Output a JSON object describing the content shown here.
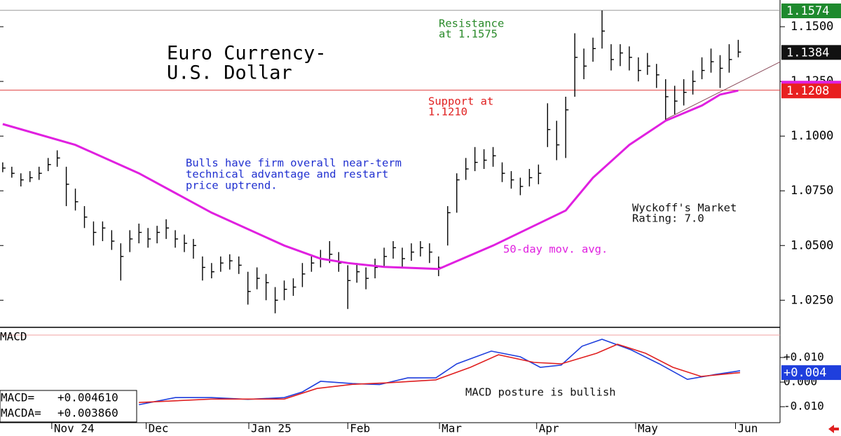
{
  "chart_data": [
    {
      "type": "ohlc",
      "title": [
        "Euro Currency-",
        "U.S. Dollar"
      ],
      "xlim": [
        -0.3,
        85.6
      ],
      "xticks": [
        {
          "value": 5.4,
          "label": "Nov 24"
        },
        {
          "value": 15.8,
          "label": "Dec"
        },
        {
          "value": 27.1,
          "label": "Jan 25"
        },
        {
          "value": 38,
          "label": "Feb"
        },
        {
          "value": 48.1,
          "label": "Mar"
        },
        {
          "value": 58.8,
          "label": "Apr"
        },
        {
          "value": 69.7,
          "label": "May"
        },
        {
          "value": 80.7,
          "label": "Jun"
        }
      ],
      "ylim": [
        1.0126,
        1.1574
      ],
      "yticks": [
        {
          "value": 1.15,
          "label": "1.1500"
        },
        {
          "value": 1.125,
          "label": "1.1250"
        },
        {
          "value": 1.1,
          "label": "1.1000"
        },
        {
          "value": 1.075,
          "label": "1.0750"
        },
        {
          "value": 1.05,
          "label": "1.0500"
        },
        {
          "value": 1.025,
          "label": "1.0250"
        }
      ],
      "color": "#000000",
      "bars": {
        "high": [
          1.088,
          1.086,
          1.083,
          1.084,
          1.086,
          1.09,
          1.0935,
          1.086,
          1.076,
          1.068,
          1.061,
          1.061,
          1.057,
          1.051,
          1.057,
          1.06,
          1.058,
          1.059,
          1.062,
          1.057,
          1.055,
          1.053,
          1.045,
          1.042,
          1.045,
          1.046,
          1.045,
          1.038,
          1.04,
          1.037,
          1.031,
          1.034,
          1.035,
          1.042,
          1.045,
          1.048,
          1.052,
          1.047,
          1.041,
          1.042,
          1.04,
          1.044,
          1.049,
          1.052,
          1.049,
          1.051,
          1.052,
          1.051,
          1.045,
          1.068,
          1.083,
          1.09,
          1.095,
          1.094,
          1.095,
          1.088,
          1.084,
          1.081,
          1.085,
          1.087,
          1.115,
          1.107,
          1.118,
          1.147,
          1.14,
          1.145,
          1.1574,
          1.142,
          1.142,
          1.141,
          1.136,
          1.138,
          1.133,
          1.126,
          1.123,
          1.126,
          1.13,
          1.136,
          1.14,
          1.137,
          1.142,
          1.144
        ],
        "low": [
          1.0835,
          1.081,
          1.077,
          1.079,
          1.08,
          1.084,
          1.086,
          1.068,
          1.066,
          1.058,
          1.05,
          1.052,
          1.048,
          1.034,
          1.047,
          1.051,
          1.049,
          1.051,
          1.053,
          1.049,
          1.047,
          1.044,
          1.034,
          1.035,
          1.038,
          1.039,
          1.037,
          1.023,
          1.03,
          1.025,
          1.019,
          1.025,
          1.027,
          1.031,
          1.038,
          1.04,
          1.042,
          1.038,
          1.021,
          1.033,
          1.03,
          1.035,
          1.04,
          1.044,
          1.04,
          1.043,
          1.045,
          1.042,
          1.036,
          1.05,
          1.065,
          1.08,
          1.084,
          1.085,
          1.086,
          1.079,
          1.076,
          1.073,
          1.077,
          1.078,
          1.095,
          1.089,
          1.09,
          1.118,
          1.126,
          1.134,
          1.14,
          1.13,
          1.132,
          1.13,
          1.125,
          1.128,
          1.122,
          1.107,
          1.11,
          1.114,
          1.119,
          1.126,
          1.129,
          1.122,
          1.129,
          1.136
        ],
        "close": [
          1.0854,
          1.083,
          1.08,
          1.081,
          1.083,
          1.087,
          1.09,
          1.078,
          1.07,
          1.063,
          1.056,
          1.058,
          1.052,
          1.045,
          1.053,
          1.056,
          1.053,
          1.056,
          1.058,
          1.053,
          1.051,
          1.05,
          1.04,
          1.038,
          1.042,
          1.043,
          1.041,
          1.029,
          1.035,
          1.033,
          1.025,
          1.03,
          1.031,
          1.037,
          1.042,
          1.044,
          1.046,
          1.042,
          1.034,
          1.038,
          1.035,
          1.04,
          1.045,
          1.049,
          1.044,
          1.047,
          1.049,
          1.047,
          1.04,
          1.065,
          1.08,
          1.085,
          1.088,
          1.089,
          1.091,
          1.083,
          1.08,
          1.077,
          1.081,
          1.083,
          1.103,
          1.096,
          1.112,
          1.136,
          1.132,
          1.14,
          1.148,
          1.135,
          1.138,
          1.136,
          1.13,
          1.132,
          1.128,
          1.118,
          1.116,
          1.12,
          1.125,
          1.13,
          1.134,
          1.131,
          1.135,
          1.1384
        ]
      },
      "series": [
        {
          "color": "#e020e0",
          "x": [
            0,
            8,
            15,
            23,
            31,
            35,
            38,
            42,
            48,
            54,
            62,
            65,
            69,
            73,
            77,
            79,
            81
          ],
          "values": [
            1.1055,
            1.096,
            1.083,
            1.065,
            1.05,
            1.044,
            1.042,
            1.0402,
            1.0393,
            1.05,
            1.066,
            1.081,
            1.096,
            1.107,
            1.114,
            1.119,
            1.1208
          ]
        }
      ],
      "trendline": {
        "color": "#8a4a5a",
        "x": [
          73,
          85.6
        ],
        "values": [
          1.1077,
          1.1339
        ]
      },
      "levels": [
        {
          "value": 1.1575,
          "color": "#999999"
        },
        {
          "value": 1.121,
          "color": "#e04040"
        }
      ],
      "price_markers": [
        {
          "value": 1.1574,
          "color": "#1e8a2e"
        },
        {
          "value": 1.1384,
          "color": "#111111"
        },
        {
          "value": 1.1208,
          "color": "#e82020"
        }
      ],
      "annotations": [
        {
          "lines": [
            "Resistance",
            "at 1.1575"
          ],
          "color": "#2a8a2a"
        },
        {
          "lines": [
            "Support at",
            "1.1210"
          ],
          "color": "#e02020"
        },
        {
          "lines": [
            "Bulls have firm overall near-term",
            "technical advantage and restart",
            "price uptrend."
          ],
          "color": "#2030d0"
        },
        {
          "lines": [
            "Wyckoff's Market",
            "Rating: 7.0"
          ],
          "color": "#111111"
        },
        {
          "lines": [
            "50-day mov. avg."
          ],
          "color": "#e020e0"
        }
      ]
    },
    {
      "type": "line",
      "title": "MACD",
      "ylim": [
        -0.0165,
        0.0214
      ],
      "yticks": [
        {
          "value": 0.01,
          "label": "+0.010"
        },
        {
          "value": 0,
          "label": "0.000"
        },
        {
          "value": -0.01,
          "label": "-0.010"
        }
      ],
      "series": [
        {
          "name": "MACD=",
          "value_label": "+0.004610",
          "color": "#1f3fdd",
          "x": [
            15,
            19,
            23,
            27,
            31,
            33,
            35,
            38.5,
            41.5,
            44.6,
            47.7,
            50,
            53.8,
            57,
            59.2,
            61.5,
            63.8,
            66,
            69.2,
            72.3,
            75.4,
            78.5,
            81.2
          ],
          "values": [
            -0.0092,
            -0.0063,
            -0.0063,
            -0.007,
            -0.0063,
            -0.004,
            0.0003,
            -0.0006,
            -0.001,
            0.0017,
            0.0017,
            0.0074,
            0.0126,
            0.0103,
            0.006,
            0.0069,
            0.0146,
            0.0174,
            0.0131,
            0.0074,
            0.0011,
            0.0031,
            0.00461
          ]
        },
        {
          "name": "MACDA=",
          "value_label": "+0.003860",
          "color": "#e02020",
          "x": [
            15,
            23,
            31,
            34.6,
            38.5,
            42.3,
            47.7,
            51.5,
            54.6,
            58.5,
            61.5,
            65.4,
            67.7,
            70.8,
            73.8,
            76.9,
            81.2
          ],
          "values": [
            -0.0083,
            -0.0069,
            -0.0069,
            -0.0026,
            -0.0009,
            -0.0003,
            0.0009,
            0.006,
            0.0111,
            0.008,
            0.0074,
            0.0117,
            0.0154,
            0.0117,
            0.006,
            0.0023,
            0.00386
          ]
        }
      ],
      "price_markers": [
        {
          "value": 0.004,
          "label": "+0.004",
          "color": "#1f3fdd"
        }
      ],
      "annotations": [
        {
          "lines": [
            "MACD posture is bullish"
          ],
          "color": "#111111"
        }
      ]
    }
  ]
}
